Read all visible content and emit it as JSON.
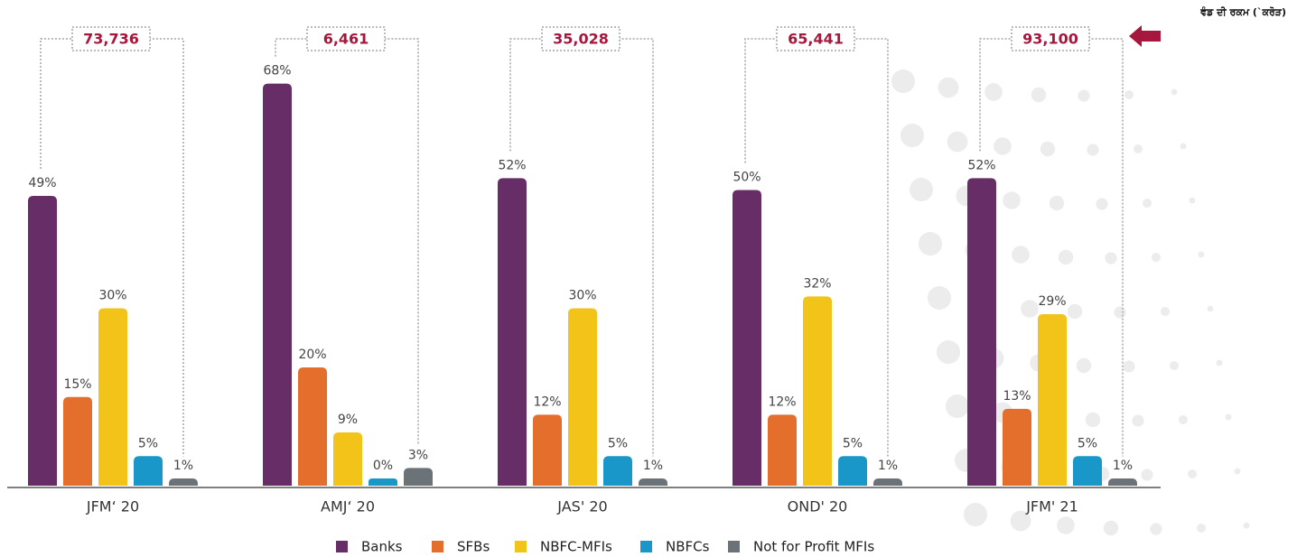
{
  "chart_data": {
    "type": "bar",
    "header": "ਵੰਡ ਦੀ ਰਕਮ (`ਕਰੋੜ)",
    "categories": [
      "JFM‘ 20",
      "AMJ‘ 20",
      "JAS' 20",
      "OND' 20",
      "JFM' 21"
    ],
    "totals": {
      "values": [
        73736,
        6461,
        35028,
        65441,
        93100
      ],
      "value_labels": [
        "73,736",
        "6,461",
        "35,028",
        "65,441",
        "93,100"
      ]
    },
    "series": [
      {
        "name": "Banks",
        "color": "#662d66",
        "values": [
          49,
          68,
          52,
          50,
          52
        ],
        "value_labels": [
          "49%",
          "68%",
          "52%",
          "50%",
          "52%"
        ]
      },
      {
        "name": "SFBs",
        "color": "#e46f2c",
        "values": [
          15,
          20,
          12,
          12,
          13
        ],
        "value_labels": [
          "15%",
          "20%",
          "12%",
          "12%",
          "13%"
        ]
      },
      {
        "name": "NBFC-MFIs",
        "color": "#f2c318",
        "values": [
          30,
          9,
          30,
          32,
          29
        ],
        "value_labels": [
          "30%",
          "9%",
          "30%",
          "32%",
          "29%"
        ]
      },
      {
        "name": "NBFCs",
        "color": "#1a97c9",
        "values": [
          5,
          0,
          5,
          5,
          5
        ],
        "value_labels": [
          "5%",
          "0%",
          "5%",
          "5%",
          "5%"
        ]
      },
      {
        "name": "Not for Profit MFIs",
        "color": "#6b7378",
        "values": [
          1,
          3,
          1,
          1,
          1
        ],
        "value_labels": [
          "1%",
          "3%",
          "1%",
          "1%",
          "1%"
        ]
      }
    ]
  }
}
